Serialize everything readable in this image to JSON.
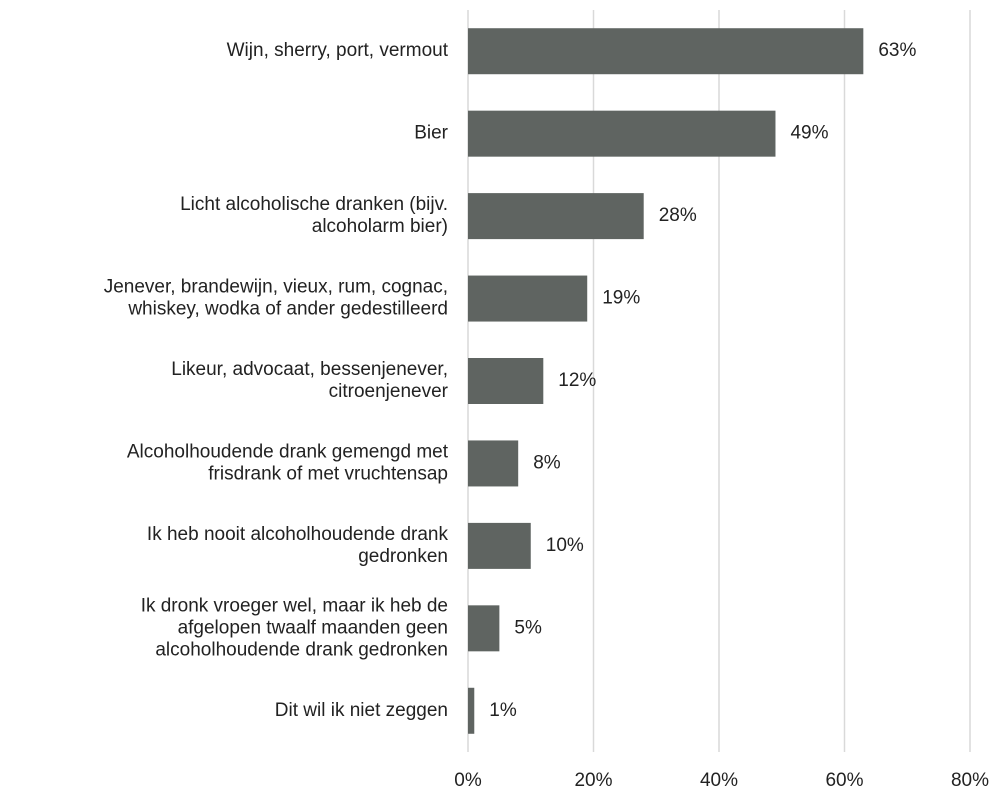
{
  "chart_data": {
    "type": "bar",
    "orientation": "horizontal",
    "categories": [
      "Wijn, sherry, port, vermout",
      "Bier",
      "Licht alcoholische dranken (bijv.\nalcoholarm bier)",
      "Jenever, brandewijn, vieux, rum, cognac,\nwhiskey, wodka of ander gedestilleerd",
      "Likeur, advocaat, bessenjenever,\ncitroenjenever",
      "Alcoholhoudende drank gemengd met\nfrisdrank of met vruchtensap",
      "Ik heb nooit alcoholhoudende drank\ngedronken",
      "Ik dronk vroeger wel, maar ik heb de\nafgelopen twaalf maanden geen\nalcoholhoudende drank gedronken",
      "Dit wil ik niet zeggen"
    ],
    "values": [
      63,
      49,
      28,
      19,
      12,
      8,
      10,
      5,
      1
    ],
    "value_labels": [
      "63%",
      "49%",
      "28%",
      "19%",
      "12%",
      "8%",
      "10%",
      "5%",
      "1%"
    ],
    "color": "#5f6461",
    "xlim": [
      0,
      80
    ],
    "xticks": [
      {
        "value": 0,
        "label": "0%"
      },
      {
        "value": 20,
        "label": "20%"
      },
      {
        "value": 40,
        "label": "40%"
      },
      {
        "value": 60,
        "label": "60%"
      },
      {
        "value": 80,
        "label": "80%"
      }
    ],
    "grid": true
  }
}
